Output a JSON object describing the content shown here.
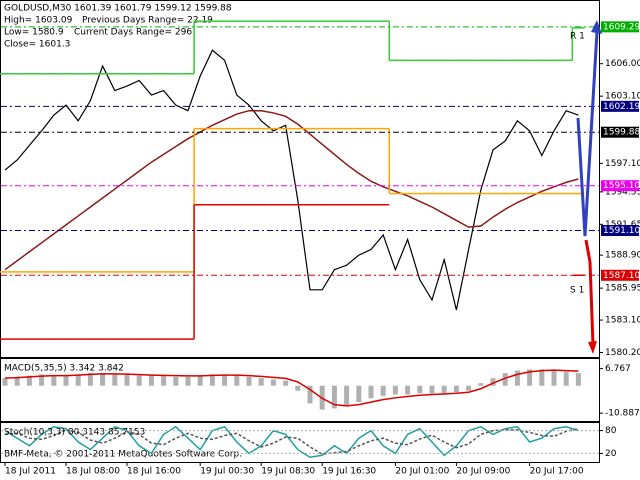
{
  "header": {
    "symbol_line": "GOLDUSD,M30  1601.39 1601.79 1599.12 1599.88",
    "high": "High= 1603.09",
    "prev_range": "Previous Days Range= 22.19",
    "low": "Low= 1580.9",
    "cur_range": "Current Days Range= 296",
    "close": "Close= 1601.3"
  },
  "footer": "BMF-Meta, © 2001-2011 MetaQuotes Software Corp.",
  "chart_data": [
    {
      "type": "line",
      "categories": [
        "18 Jul 2011",
        null,
        null,
        null,
        null,
        "18 Jul 08:00",
        null,
        null,
        null,
        null,
        "18 Jul 16:00",
        null,
        null,
        null,
        null,
        null,
        "19 Jul 00:30",
        null,
        null,
        null,
        null,
        "19 Jul 08:30",
        null,
        null,
        null,
        null,
        "19 Jul 16:30",
        null,
        null,
        null,
        null,
        null,
        "20 Jul 01:00",
        null,
        null,
        null,
        null,
        "20 Jul 09:00",
        null,
        null,
        null,
        null,
        null,
        "20 Jul 17:00",
        null,
        null,
        null,
        null
      ],
      "ylim": [
        1579.8,
        1611.6
      ],
      "yticks": [
        {
          "value": 1606,
          "label": "1606.00"
        },
        {
          "value": 1603.1,
          "label": "1603.10"
        },
        {
          "value": 1597.1,
          "label": "1597.10"
        },
        {
          "value": 1594.55,
          "label": "1594.55"
        },
        {
          "value": 1591.65,
          "label": "1591.65"
        },
        {
          "value": 1588.9,
          "label": "1588.90"
        },
        {
          "value": 1585.95,
          "label": "1585.95"
        },
        {
          "value": 1583.1,
          "label": "1583.10"
        },
        {
          "value": 1580.2,
          "label": "1580.20"
        }
      ],
      "series": [
        {
          "color": "#000000",
          "style": "line",
          "values": [
            1596.5,
            1597.4,
            1598.7,
            1600.0,
            1601.4,
            1602.3,
            1600.9,
            1602.7,
            1605.8,
            1603.6,
            1604.0,
            1604.5,
            1603.2,
            1603.6,
            1602.3,
            1601.8,
            1604.9,
            1607.2,
            1606.3,
            1603.2,
            1602.3,
            1600.9,
            1600.0,
            1600.5,
            1593.8,
            1585.8,
            1585.8,
            1587.6,
            1588.0,
            1588.9,
            1589.4,
            1590.7,
            1587.6,
            1590.3,
            1586.7,
            1584.9,
            1588.5,
            1584.0,
            1589.4,
            1594.7,
            1598.3,
            1599.1,
            1600.9,
            1600.0,
            1597.8,
            1600.0,
            1601.8,
            1601.4
          ]
        },
        {
          "color": "#8b1a1a",
          "style": "line",
          "values": [
            1587.6,
            1588.4,
            1589.2,
            1590.0,
            1590.8,
            1591.6,
            1592.4,
            1593.2,
            1594.0,
            1594.8,
            1595.6,
            1596.4,
            1597.2,
            1597.9,
            1598.6,
            1599.3,
            1599.9,
            1600.5,
            1601.0,
            1601.5,
            1601.8,
            1601.8,
            1601.6,
            1601.3,
            1600.6,
            1599.7,
            1598.8,
            1597.9,
            1597.0,
            1596.2,
            1595.5,
            1595.0,
            1594.6,
            1594.2,
            1593.7,
            1593.2,
            1592.6,
            1592.0,
            1591.4,
            1591.5,
            1592.3,
            1593.0,
            1593.6,
            1594.1,
            1594.6,
            1595.0,
            1595.4,
            1595.7
          ]
        },
        {
          "color": "#33cc33",
          "style": "step",
          "values": [
            1605.1,
            1605.1,
            1605.1,
            1605.1,
            1605.1,
            1605.1,
            1605.1,
            1605.1,
            1605.1,
            1605.1,
            1605.1,
            1605.1,
            1605.1,
            1605.1,
            1605.1,
            1605.1,
            1609.8,
            1609.8,
            1609.8,
            1609.8,
            1609.8,
            1609.8,
            1609.8,
            1609.8,
            1609.8,
            1609.8,
            1609.8,
            1609.8,
            1609.8,
            1609.8,
            1609.8,
            1609.8,
            1606.3,
            1606.3,
            1606.3,
            1606.3,
            1606.3,
            1606.3,
            1606.3,
            1606.3,
            1606.3,
            1606.3,
            1606.3,
            1606.3,
            1606.3,
            1606.3,
            1606.3,
            1609.2
          ]
        },
        {
          "color": "#ffa500",
          "style": "step",
          "values": [
            1587.4,
            1587.4,
            1587.4,
            1587.4,
            1587.4,
            1587.4,
            1587.4,
            1587.4,
            1587.4,
            1587.4,
            1587.4,
            1587.4,
            1587.4,
            1587.4,
            1587.4,
            1587.4,
            1600.2,
            1600.2,
            1600.2,
            1600.2,
            1600.2,
            1600.2,
            1600.2,
            1600.2,
            1600.2,
            1600.2,
            1600.2,
            1600.2,
            1600.2,
            1600.2,
            1600.2,
            1600.2,
            1594.4,
            1594.4,
            1594.4,
            1594.4,
            1594.4,
            1594.4,
            1594.4,
            1594.4,
            1594.4,
            1594.4,
            1594.4,
            1594.4,
            1594.4,
            1594.4,
            1594.4,
            1594.4
          ]
        },
        {
          "color": "#dd0000",
          "style": "step",
          "values": [
            1581.4,
            1581.4,
            1581.4,
            1581.4,
            1581.4,
            1581.4,
            1581.4,
            1581.4,
            1581.4,
            1581.4,
            1581.4,
            1581.4,
            1581.4,
            1581.4,
            1581.4,
            1581.4,
            1593.4,
            1593.4,
            1593.4,
            1593.4,
            1593.4,
            1593.4,
            1593.4,
            1593.4,
            1593.4,
            1593.4,
            1593.4,
            1593.4,
            1593.4,
            1593.4,
            1593.4,
            1593.4,
            null,
            null,
            null,
            null,
            null,
            null,
            null,
            null,
            null,
            null,
            null,
            null,
            null,
            null,
            null,
            1587.1
          ]
        }
      ],
      "levels": [
        {
          "value": 1609.29,
          "color": "#00b000"
        },
        {
          "value": 1602.19,
          "color": "#000080"
        },
        {
          "value": 1599.88,
          "color": "#000000"
        },
        {
          "value": 1595.1,
          "label": "1595.10",
          "color": "#ee00ee"
        },
        {
          "value": 1591.1,
          "label": "1591.10",
          "color": "#000080"
        },
        {
          "value": 1587.1,
          "label": "1587.10",
          "color": "#dd0000"
        }
      ],
      "annotations": [
        "R 1",
        "S 1"
      ]
    },
    {
      "type": "bar",
      "title": "MACD(5,35,5) 3.342 3.842",
      "ylim": [
        -14.0,
        10.6
      ],
      "yticks": [
        6.767,
        -10.887
      ],
      "series": [
        {
          "color": "#b0b0b0",
          "style": "bar",
          "values": [
            3,
            3.5,
            4,
            4.5,
            4,
            4,
            4.5,
            5,
            5,
            4.5,
            4.5,
            4,
            4,
            4,
            3.5,
            3.5,
            4,
            4.5,
            4.5,
            4,
            3.5,
            3,
            2.5,
            2,
            -2,
            -7,
            -9.5,
            -9,
            -8,
            -6.5,
            -5,
            -4,
            -3.5,
            -3.5,
            -3,
            -3,
            -3,
            -2.5,
            -2,
            1,
            3,
            5,
            6,
            6.5,
            6.5,
            6,
            5.5,
            5
          ]
        },
        {
          "color": "#dd0000",
          "style": "line",
          "values": [
            3,
            3.2,
            3.5,
            3.8,
            4,
            4,
            4.2,
            4.5,
            4.7,
            4.7,
            4.6,
            4.4,
            4.2,
            4.1,
            4,
            3.9,
            3.9,
            4.1,
            4.2,
            4.2,
            4,
            3.7,
            3.3,
            2.9,
            1.5,
            -1.5,
            -5,
            -7.5,
            -8,
            -7.5,
            -6.5,
            -5.5,
            -4.8,
            -4.3,
            -3.8,
            -3.5,
            -3.3,
            -3,
            -2.6,
            -1.2,
            1,
            3,
            4.5,
            5.5,
            6,
            6.2,
            6,
            5.8
          ]
        }
      ]
    },
    {
      "type": "line",
      "title": "Stoch(10,3,3) 80.3143 85.7153",
      "ylim": [
        0,
        100
      ],
      "yticks": [
        80,
        20
      ],
      "series": [
        {
          "color": "#20a0a0",
          "style": "line",
          "values": [
            80,
            60,
            40,
            70,
            90,
            85,
            50,
            30,
            60,
            90,
            80,
            40,
            20,
            70,
            90,
            60,
            30,
            80,
            90,
            50,
            20,
            40,
            80,
            70,
            30,
            10,
            15,
            40,
            20,
            60,
            80,
            40,
            20,
            70,
            85,
            50,
            15,
            40,
            80,
            90,
            70,
            85,
            90,
            50,
            60,
            85,
            90,
            80
          ]
        },
        {
          "color": "#555555",
          "style": "dashed",
          "values": [
            70,
            73,
            60,
            57,
            67,
            82,
            75,
            55,
            47,
            60,
            77,
            70,
            47,
            43,
            60,
            73,
            60,
            57,
            67,
            73,
            53,
            37,
            47,
            63,
            60,
            37,
            18,
            22,
            25,
            40,
            53,
            60,
            47,
            43,
            58,
            68,
            50,
            35,
            45,
            70,
            80,
            82,
            82,
            75,
            67,
            65,
            78,
            85
          ]
        }
      ]
    }
  ]
}
